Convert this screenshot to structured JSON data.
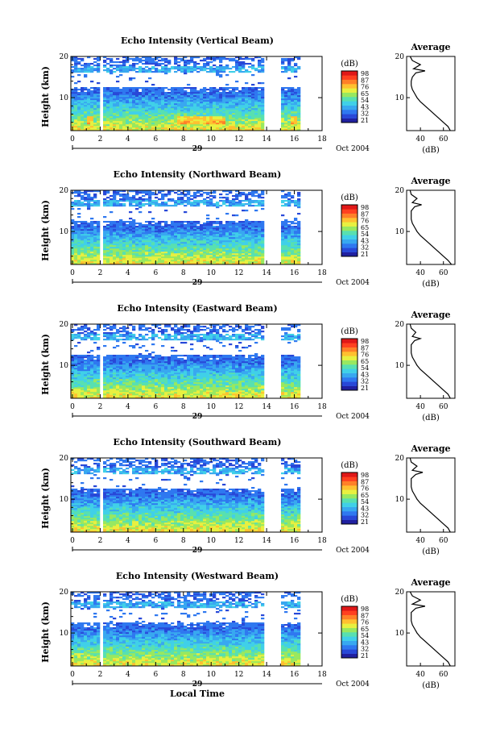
{
  "colors": {
    "colormap": [
      "#2020a0",
      "#2848d8",
      "#2f78f0",
      "#38a8f0",
      "#40d0e8",
      "#58e0b0",
      "#98e860",
      "#e8f040",
      "#ffc030",
      "#ff8028",
      "#ff4020",
      "#e01818"
    ],
    "axis": "#000000"
  },
  "chart_data": [
    {
      "type": "heatmap",
      "title": "Echo Intensity (Vertical Beam)",
      "ylabel": "Height (km)",
      "xlabel": "",
      "xlim": [
        0,
        18
      ],
      "ylim": [
        2,
        20
      ],
      "xticks": [
        "0",
        "2",
        "4",
        "6",
        "8",
        "10",
        "12",
        "14",
        "16",
        "18"
      ],
      "yticks": [
        "10",
        "20"
      ],
      "date_day": "29",
      "date_label": "Oct 2004",
      "colorbar_unit": "(dB)",
      "colorbar_ticks": [
        "98",
        "87",
        "76",
        "65",
        "54",
        "43",
        "32",
        "21"
      ],
      "data_gaps_hours": [
        [
          2.1,
          2.2
        ],
        [
          13.9,
          15.2
        ]
      ],
      "data_end_hour": 16.6,
      "profile": {
        "title": "Average",
        "xlabel": "(dB)",
        "xticks": [
          "40",
          "60"
        ],
        "xlim": [
          28,
          70
        ],
        "yticks": [
          "10",
          "20"
        ],
        "height_km": [
          2,
          3,
          4,
          5,
          6,
          7,
          8,
          9,
          10,
          11,
          12,
          13,
          14,
          15,
          16,
          16.5,
          17,
          18,
          19,
          20
        ],
        "db": [
          66,
          64,
          60,
          56,
          52,
          48,
          44,
          40,
          37,
          35,
          33,
          32,
          32,
          33,
          36,
          44,
          34,
          40,
          33,
          31
        ]
      }
    },
    {
      "type": "heatmap",
      "title": "Echo Intensity (Northward Beam)",
      "ylabel": "Height (km)",
      "xlabel": "",
      "xlim": [
        0,
        18
      ],
      "ylim": [
        2,
        20
      ],
      "xticks": [
        "0",
        "2",
        "4",
        "6",
        "8",
        "10",
        "12",
        "14",
        "16",
        "18"
      ],
      "yticks": [
        "10",
        "20"
      ],
      "date_day": "29",
      "date_label": "Oct 2004",
      "colorbar_unit": "(dB)",
      "colorbar_ticks": [
        "98",
        "87",
        "76",
        "65",
        "54",
        "43",
        "32",
        "21"
      ],
      "data_gaps_hours": [
        [
          2.1,
          2.2
        ],
        [
          13.9,
          15.2
        ]
      ],
      "data_end_hour": 16.6,
      "profile": {
        "title": "Average",
        "xlabel": "(dB)",
        "xticks": [
          "40",
          "60"
        ],
        "xlim": [
          28,
          70
        ],
        "yticks": [
          "10",
          "20"
        ],
        "height_km": [
          2,
          3,
          4,
          5,
          6,
          7,
          8,
          9,
          10,
          11,
          12,
          13,
          14,
          15,
          16,
          16.5,
          17,
          18,
          19,
          20
        ],
        "db": [
          67,
          64,
          60,
          56,
          52,
          48,
          44,
          40,
          37,
          35,
          33,
          32,
          32,
          32,
          35,
          41,
          33,
          37,
          32,
          31
        ]
      }
    },
    {
      "type": "heatmap",
      "title": "Echo Intensity (Eastward Beam)",
      "ylabel": "Height (km)",
      "xlabel": "",
      "xlim": [
        0,
        18
      ],
      "ylim": [
        2,
        20
      ],
      "xticks": [
        "0",
        "2",
        "4",
        "6",
        "8",
        "10",
        "12",
        "14",
        "16",
        "18"
      ],
      "yticks": [
        "10",
        "20"
      ],
      "date_day": "29",
      "date_label": "Oct 2004",
      "colorbar_unit": "(dB)",
      "colorbar_ticks": [
        "98",
        "87",
        "76",
        "65",
        "54",
        "43",
        "32",
        "21"
      ],
      "data_gaps_hours": [
        [
          2.1,
          2.2
        ],
        [
          13.9,
          15.2
        ]
      ],
      "data_end_hour": 16.6,
      "profile": {
        "title": "Average",
        "xlabel": "(dB)",
        "xticks": [
          "40",
          "60"
        ],
        "xlim": [
          28,
          70
        ],
        "yticks": [
          "10",
          "20"
        ],
        "height_km": [
          2,
          3,
          4,
          5,
          6,
          7,
          8,
          9,
          10,
          11,
          12,
          13,
          14,
          15,
          16,
          16.5,
          17,
          18,
          19,
          20
        ],
        "db": [
          66,
          64,
          60,
          56,
          52,
          48,
          44,
          40,
          37,
          35,
          33,
          32,
          32,
          32,
          35,
          40,
          33,
          36,
          32,
          31
        ]
      }
    },
    {
      "type": "heatmap",
      "title": "Echo Intensity (Southward Beam)",
      "ylabel": "Height (km)",
      "xlabel": "",
      "xlim": [
        0,
        18
      ],
      "ylim": [
        2,
        20
      ],
      "xticks": [
        "0",
        "2",
        "4",
        "6",
        "8",
        "10",
        "12",
        "14",
        "16",
        "18"
      ],
      "yticks": [
        "10",
        "20"
      ],
      "date_day": "29",
      "date_label": "Oct 2004",
      "colorbar_unit": "(dB)",
      "colorbar_ticks": [
        "98",
        "87",
        "76",
        "65",
        "54",
        "43",
        "32",
        "21"
      ],
      "data_gaps_hours": [
        [
          2.1,
          2.2
        ],
        [
          13.9,
          15.2
        ]
      ],
      "data_end_hour": 16.6,
      "profile": {
        "title": "Average",
        "xlabel": "(dB)",
        "xticks": [
          "40",
          "60"
        ],
        "xlim": [
          28,
          70
        ],
        "yticks": [
          "10",
          "20"
        ],
        "height_km": [
          2,
          3,
          4,
          5,
          6,
          7,
          8,
          9,
          10,
          11,
          12,
          13,
          14,
          15,
          16,
          16.5,
          17,
          18,
          19,
          20
        ],
        "db": [
          66,
          64,
          60,
          56,
          52,
          48,
          44,
          40,
          37,
          35,
          33,
          32,
          32,
          32,
          36,
          42,
          33,
          37,
          32,
          31
        ]
      }
    },
    {
      "type": "heatmap",
      "title": "Echo Intensity (Westward Beam)",
      "ylabel": "Height (km)",
      "xlabel": "Local Time",
      "xlim": [
        0,
        18
      ],
      "ylim": [
        2,
        20
      ],
      "xticks": [
        "0",
        "2",
        "4",
        "6",
        "8",
        "10",
        "12",
        "14",
        "16",
        "18"
      ],
      "yticks": [
        "10",
        "20"
      ],
      "date_day": "29",
      "date_label": "Oct 2004",
      "colorbar_unit": "(dB)",
      "colorbar_ticks": [
        "98",
        "87",
        "76",
        "65",
        "54",
        "43",
        "32",
        "21"
      ],
      "data_gaps_hours": [
        [
          2.1,
          2.2
        ],
        [
          13.9,
          15.2
        ]
      ],
      "data_end_hour": 16.6,
      "profile": {
        "title": "Average",
        "xlabel": "(dB)",
        "xticks": [
          "40",
          "60"
        ],
        "xlim": [
          28,
          70
        ],
        "yticks": [
          "10",
          "20"
        ],
        "height_km": [
          2,
          3,
          4,
          5,
          6,
          7,
          8,
          9,
          10,
          11,
          12,
          13,
          14,
          15,
          16,
          16.5,
          17,
          18,
          19,
          20
        ],
        "db": [
          66,
          64,
          60,
          56,
          52,
          48,
          44,
          40,
          37,
          35,
          33,
          32,
          32,
          32,
          36,
          44,
          33,
          40,
          33,
          31
        ]
      }
    }
  ]
}
